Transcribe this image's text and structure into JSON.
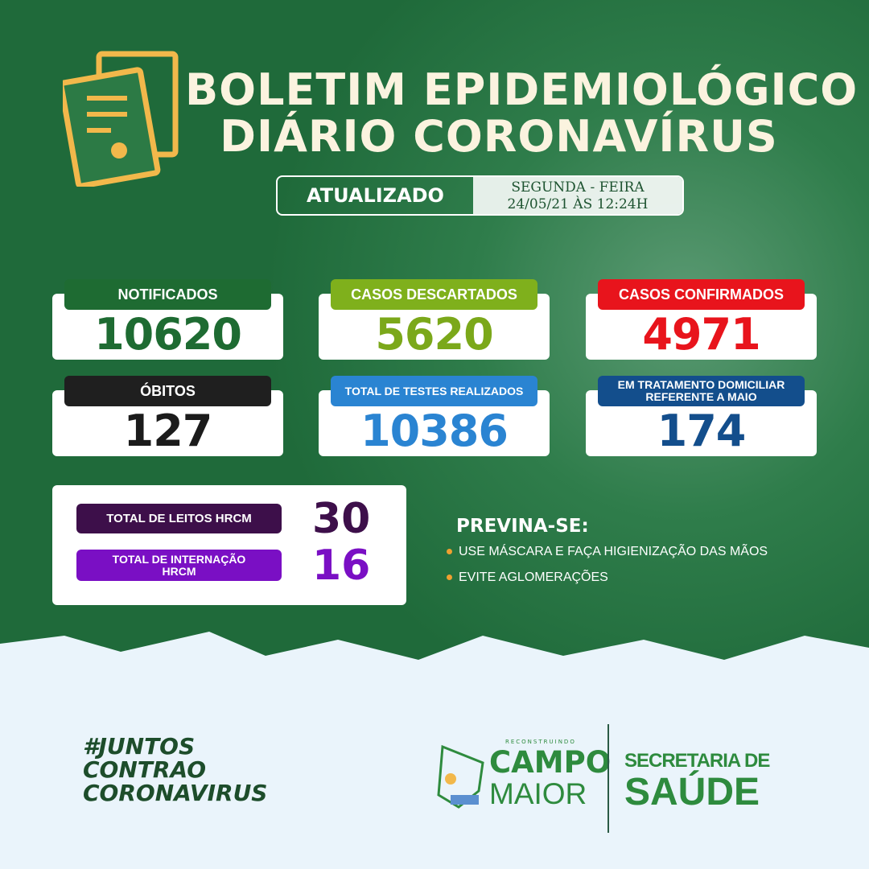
{
  "header": {
    "title_line1": "BOLETIM EPIDEMIOLÓGICO",
    "title_line2": "DIÁRIO CORONAVÍRUS",
    "updated_label": "ATUALIZADO",
    "weekday": "SEGUNDA - FEIRA",
    "datetime": "24/05/21 ÀS 12:24H"
  },
  "stats": [
    {
      "label": "NOTIFICADOS",
      "value": "10620",
      "color": "#1e6b32",
      "pill": "#1e6b32"
    },
    {
      "label": "CASOS DESCARTADOS",
      "value": "5620",
      "color": "#7ba81a",
      "pill": "#7fb01c"
    },
    {
      "label": "CASOS CONFIRMADOS",
      "value": "4971",
      "color": "#e8141c",
      "pill": "#e8141c"
    },
    {
      "label": "ÓBITOS",
      "value": "127",
      "color": "#1b1b1b",
      "pill": "#1f1f1f"
    },
    {
      "label": "TOTAL DE TESTES REALIZADOS",
      "value": "10386",
      "color": "#2a84d2",
      "pill": "#2a84d2"
    },
    {
      "label": "EM TRATAMENTO DOMICILIAR REFERENTE A MAIO",
      "value": "174",
      "color": "#134e8c",
      "pill": "#134e8c"
    }
  ],
  "beds": {
    "leitos_label": "TOTAL DE LEITOS HRCM",
    "leitos_value": "30",
    "internacao_label": "TOTAL DE INTERNAÇÃO HRCM",
    "internacao_value": "16"
  },
  "prevent": {
    "title": "PREVINA-SE:",
    "items": [
      "USE MÁSCARA E FAÇA HIGIENIZAÇÃO DAS MÃOS",
      "EVITE AGLOMERAÇÕES"
    ]
  },
  "footer": {
    "hashtag": [
      "#JUNTOS",
      "CONTRAO",
      "CORONAVIRUS"
    ],
    "logo_top": "RECONSTRUINDO",
    "logo_campo": "CAMPO",
    "logo_maior": "MAIOR",
    "sec_line1": "SECRETARIA DE",
    "sec_line2": "SAÚDE"
  }
}
